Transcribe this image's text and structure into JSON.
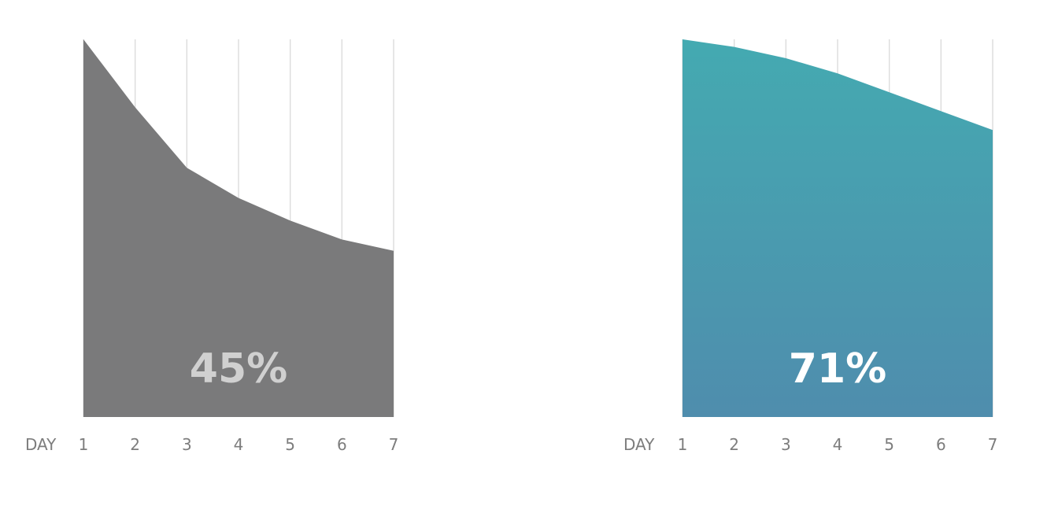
{
  "chart_data": [
    {
      "type": "area",
      "xlabel": "DAY",
      "categories": [
        "1",
        "2",
        "3",
        "4",
        "5",
        "6",
        "7"
      ],
      "x": [
        1,
        2,
        3,
        4,
        5,
        6,
        7
      ],
      "values": [
        100,
        82,
        66,
        58,
        52,
        47,
        44
      ],
      "ylim": [
        0,
        100
      ],
      "center_label": "45%",
      "grid": true,
      "fill": "#7a7a7b",
      "label_color": "#d0d0d0"
    },
    {
      "type": "area",
      "xlabel": "DAY",
      "categories": [
        "1",
        "2",
        "3",
        "4",
        "5",
        "6",
        "7"
      ],
      "x": [
        1,
        2,
        3,
        4,
        5,
        6,
        7
      ],
      "values": [
        100,
        98,
        95,
        91,
        86,
        81,
        76
      ],
      "ylim": [
        0,
        100
      ],
      "center_label": "71%",
      "grid": true,
      "fill_gradient": [
        "#44aab1",
        "#4f8dad"
      ],
      "label_color": "#ffffff"
    }
  ]
}
